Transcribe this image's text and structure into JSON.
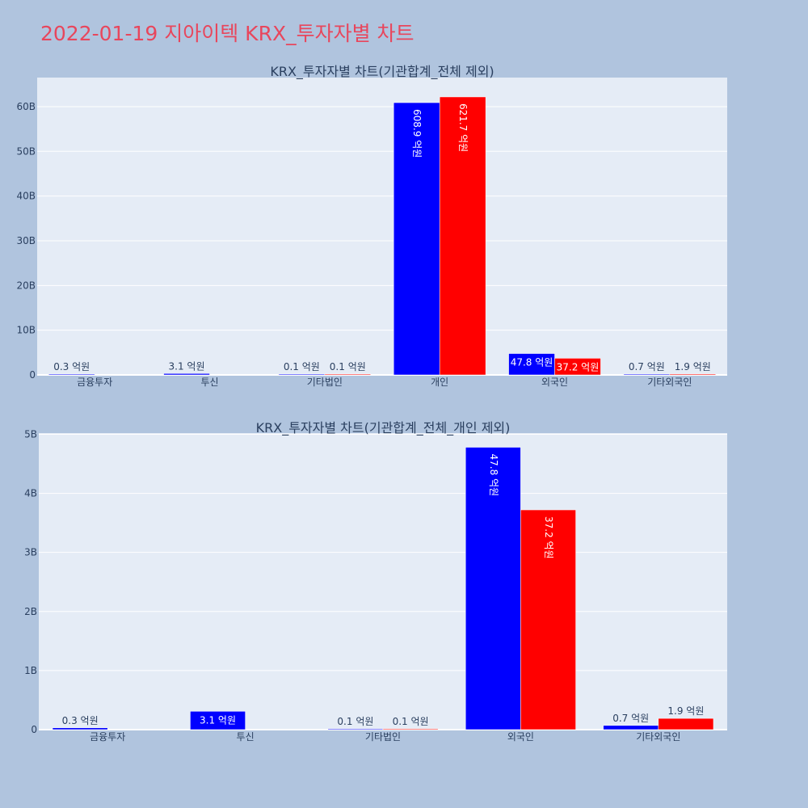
{
  "page_title": "2022-01-19 지아이텍 KRX_투자자별 차트",
  "colors": {
    "background": "#b0c4de",
    "title": "#e8465c",
    "plot_bg": "#e5ecf6",
    "grid": "#ffffff",
    "text": "#2a3f5f"
  },
  "chart_data": [
    {
      "type": "bar",
      "title": "KRX_투자자별 차트(기관합계_전체 제외)",
      "categories": [
        "금융투자",
        "투신",
        "기타법인",
        "개인",
        "외국인",
        "기타외국인"
      ],
      "ylim": [
        0,
        66.5
      ],
      "yticks": [
        0,
        10,
        20,
        30,
        40,
        50,
        60
      ],
      "ytick_labels": [
        "0",
        "10B",
        "20B",
        "30B",
        "40B",
        "50B",
        "60B"
      ],
      "grid": true,
      "series": [
        {
          "color": "#0000ff",
          "values": [
            0.03,
            0.31,
            0.01,
            60.89,
            4.78,
            0.07
          ],
          "labels": [
            "0.3 억원",
            "3.1 억원",
            "0.1 억원",
            "608.9 억원",
            "47.8 억원",
            "0.7 억원"
          ]
        },
        {
          "color": "#ff0000",
          "values": [
            null,
            null,
            0.01,
            62.17,
            3.72,
            0.19
          ],
          "labels": [
            "",
            "",
            "0.1 억원",
            "621.7 억원",
            "37.2 억원",
            "1.9 억원"
          ]
        }
      ]
    },
    {
      "type": "bar",
      "title": "KRX_투자자별 차트(기관합계_전체_개인 제외)",
      "categories": [
        "금융투자",
        "투신",
        "기타법인",
        "외국인",
        "기타외국인"
      ],
      "ylim": [
        0,
        5.02
      ],
      "yticks": [
        0,
        1,
        2,
        3,
        4,
        5
      ],
      "ytick_labels": [
        "0",
        "1B",
        "2B",
        "3B",
        "4B",
        "5B"
      ],
      "grid": true,
      "series": [
        {
          "color": "#0000ff",
          "values": [
            0.03,
            0.31,
            0.01,
            4.78,
            0.07
          ],
          "labels": [
            "0.3 억원",
            "3.1 억원",
            "0.1 억원",
            "47.8 억원",
            "0.7 억원"
          ]
        },
        {
          "color": "#ff0000",
          "values": [
            null,
            null,
            0.01,
            3.72,
            0.19
          ],
          "labels": [
            "",
            "",
            "0.1 억원",
            "37.2 억원",
            "1.9 억원"
          ]
        }
      ]
    }
  ]
}
